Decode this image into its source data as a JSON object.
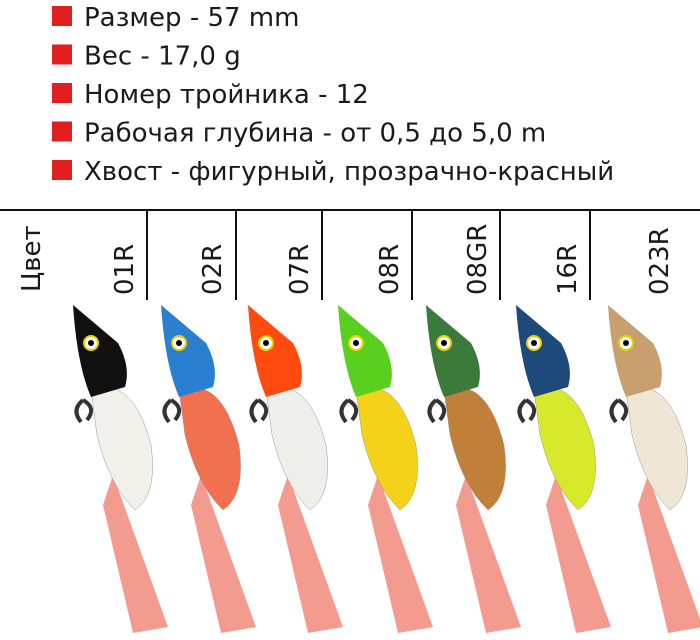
{
  "specs": [
    "Размер - 57 mm",
    "Вес - 17,0 g",
    "Номер тройника - 12",
    "Рабочая глубина - от 0,5 до 5,0 m",
    "Хвост - фигурный, прозрачно-красный"
  ],
  "table": {
    "header": "Цвет",
    "colors": [
      "01R",
      "02R",
      "07R",
      "08R",
      "08GR",
      "16R",
      "023R"
    ]
  }
}
